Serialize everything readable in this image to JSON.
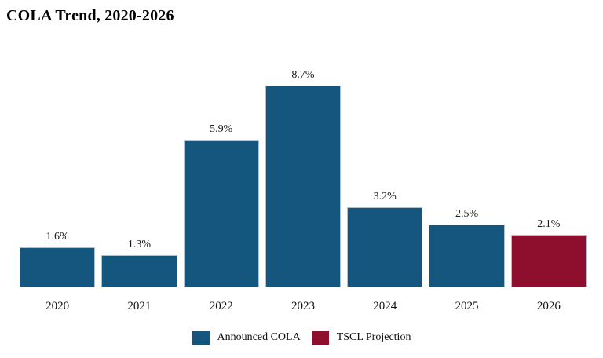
{
  "title": "COLA Trend, 2020-2026",
  "chart_data": {
    "type": "bar",
    "title": "COLA Trend, 2020-2026",
    "categories": [
      "2020",
      "2021",
      "2022",
      "2023",
      "2024",
      "2025",
      "2026"
    ],
    "values": [
      1.6,
      1.3,
      5.9,
      8.7,
      3.2,
      2.5,
      2.1
    ],
    "value_labels": [
      "1.6%",
      "1.3%",
      "5.9%",
      "8.7%",
      "3.2%",
      "2.5%",
      "2.1%"
    ],
    "series_assignment": [
      "announced",
      "announced",
      "announced",
      "announced",
      "announced",
      "announced",
      "projection"
    ],
    "colors": {
      "announced": "#15567e",
      "projection": "#8e0e2e"
    },
    "legend": [
      {
        "label": "Announced COLA",
        "color_key": "announced"
      },
      {
        "label": "TSCL Projection",
        "color_key": "projection"
      }
    ],
    "legend_position": "bottom-center",
    "grid": false,
    "axes_visible": false,
    "xlabel": "",
    "ylabel": "",
    "ylim": [
      0,
      8.7
    ]
  }
}
